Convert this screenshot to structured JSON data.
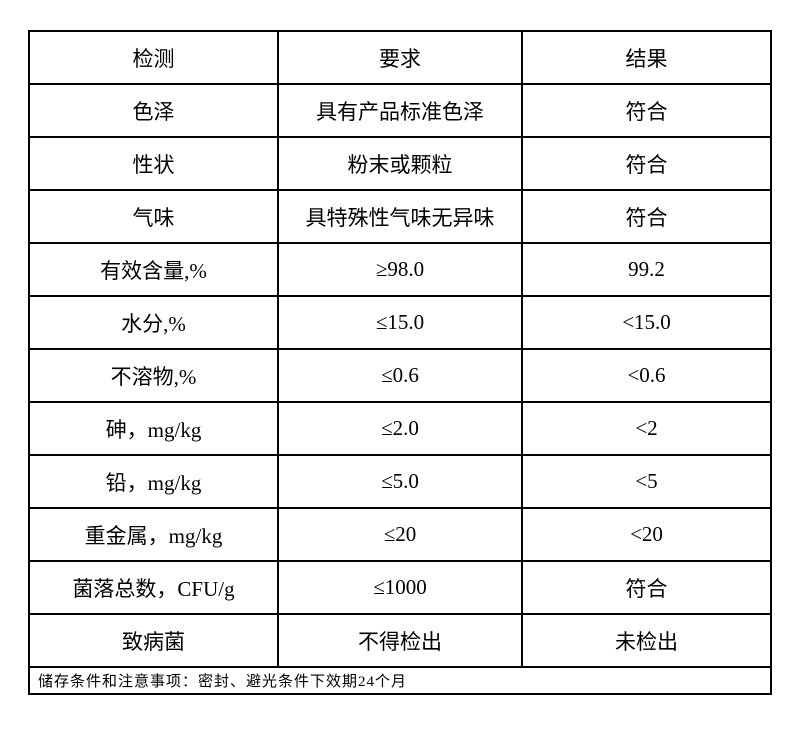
{
  "table": {
    "headers": [
      "检测",
      "要求",
      "结果"
    ],
    "rows": [
      [
        "色泽",
        "具有产品标准色泽",
        "符合"
      ],
      [
        "性状",
        "粉末或颗粒",
        "符合"
      ],
      [
        "气味",
        "具特殊性气味无异味",
        "符合"
      ],
      [
        "有效含量,%",
        "≥98.0",
        "99.2"
      ],
      [
        "水分,%",
        "≤15.0",
        "<15.0"
      ],
      [
        "不溶物,%",
        "≤0.6",
        "<0.6"
      ],
      [
        "砷，mg/kg",
        "≤2.0",
        "<2"
      ],
      [
        "铅，mg/kg",
        "≤5.0",
        "<5"
      ],
      [
        "重金属，mg/kg",
        "≤20",
        "<20"
      ],
      [
        "菌落总数，CFU/g",
        "≤1000",
        "符合"
      ],
      [
        "致病菌",
        "不得检出",
        "未检出"
      ]
    ],
    "note": "储存条件和注意事项：密封、避光条件下效期24个月"
  }
}
